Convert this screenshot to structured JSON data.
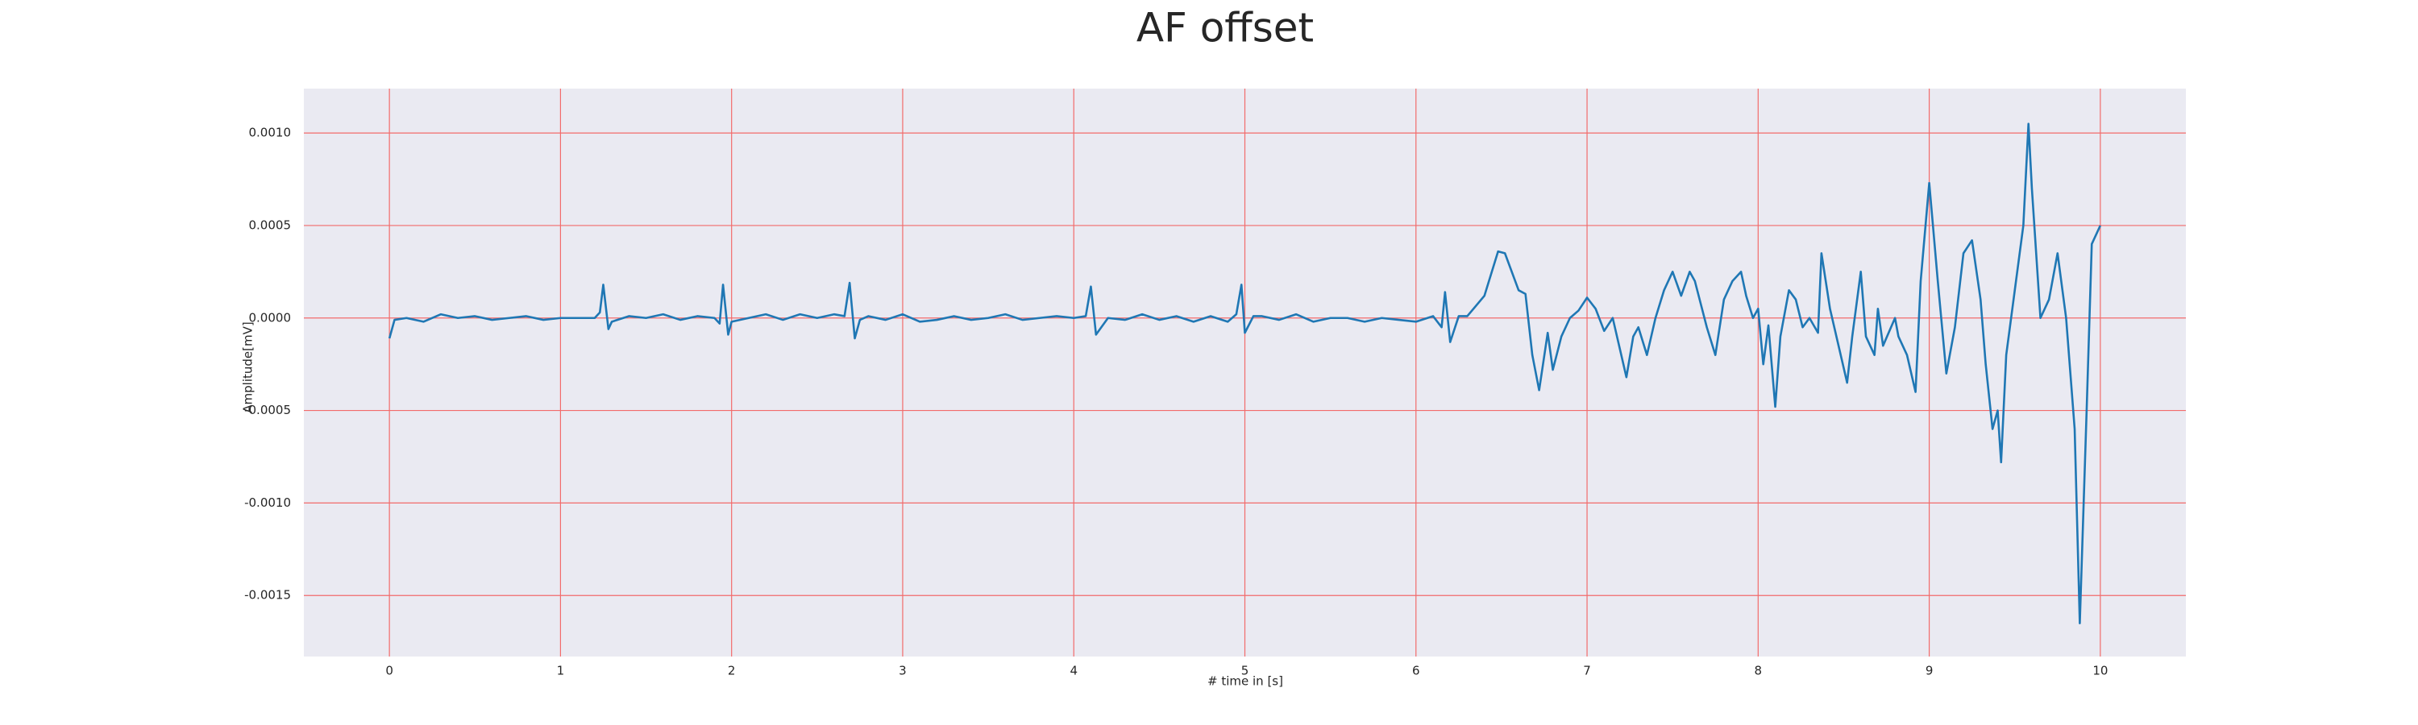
{
  "chart_data": {
    "type": "line",
    "title": "AF offset",
    "x_label": "# time in [s]",
    "y_label": "Amplitude[mV]",
    "xlim": [
      -0.5,
      10.5
    ],
    "xticks": [
      0,
      1,
      2,
      3,
      4,
      5,
      6,
      7,
      8,
      9,
      10
    ],
    "ylim": [
      -0.00183,
      0.00124
    ],
    "yticks": [
      {
        "value": 0.001,
        "label": "0.0010"
      },
      0.0005,
      {
        "value": 0,
        "label": "0.0000"
      },
      -0.0005,
      {
        "value": -0.001,
        "label": "-0.0010"
      },
      -0.0015
    ],
    "grid": true,
    "grid_color": "#f26b6b",
    "background": "#eaeaf2",
    "color": "#1f77b4",
    "x": [
      0,
      0.03,
      0.1,
      0.2,
      0.3,
      0.4,
      0.5,
      0.6,
      0.7,
      0.8,
      0.9,
      1.0,
      1.1,
      1.2,
      1.23,
      1.25,
      1.28,
      1.3,
      1.4,
      1.5,
      1.6,
      1.7,
      1.8,
      1.9,
      1.93,
      1.95,
      1.98,
      2.0,
      2.1,
      2.2,
      2.3,
      2.4,
      2.5,
      2.6,
      2.66,
      2.69,
      2.72,
      2.75,
      2.8,
      2.9,
      3.0,
      3.1,
      3.2,
      3.3,
      3.4,
      3.5,
      3.6,
      3.7,
      3.8,
      3.9,
      4.0,
      4.07,
      4.1,
      4.13,
      4.2,
      4.3,
      4.4,
      4.5,
      4.6,
      4.7,
      4.8,
      4.9,
      4.95,
      4.98,
      5.0,
      5.05,
      5.1,
      5.2,
      5.3,
      5.4,
      5.5,
      5.6,
      5.7,
      5.8,
      5.9,
      6.0,
      6.1,
      6.15,
      6.17,
      6.2,
      6.25,
      6.3,
      6.4,
      6.48,
      6.52,
      6.6,
      6.64,
      6.68,
      6.72,
      6.77,
      6.8,
      6.85,
      6.9,
      6.95,
      7.0,
      7.05,
      7.1,
      7.15,
      7.2,
      7.23,
      7.27,
      7.3,
      7.35,
      7.4,
      7.45,
      7.5,
      7.55,
      7.6,
      7.63,
      7.7,
      7.75,
      7.8,
      7.85,
      7.9,
      7.93,
      7.97,
      8.0,
      8.03,
      8.06,
      8.1,
      8.13,
      8.18,
      8.22,
      8.26,
      8.3,
      8.35,
      8.37,
      8.42,
      8.47,
      8.52,
      8.55,
      8.6,
      8.63,
      8.68,
      8.7,
      8.73,
      8.8,
      8.82,
      8.87,
      8.92,
      8.95,
      9.0,
      9.05,
      9.1,
      9.15,
      9.2,
      9.25,
      9.3,
      9.33,
      9.37,
      9.4,
      9.42,
      9.45,
      9.5,
      9.55,
      9.58,
      9.6,
      9.65,
      9.7,
      9.75,
      9.8,
      9.85,
      9.88,
      9.92,
      9.95,
      10.0
    ],
    "values": [
      -0.00011,
      -1e-05,
      0,
      -2e-05,
      2e-05,
      0,
      1e-05,
      -1e-05,
      0,
      1e-05,
      -1e-05,
      0,
      0,
      0,
      3e-05,
      0.00018,
      -6e-05,
      -2e-05,
      1e-05,
      0,
      2e-05,
      -1e-05,
      1e-05,
      0,
      -3e-05,
      0.00018,
      -9e-05,
      -2e-05,
      0,
      2e-05,
      -1e-05,
      2e-05,
      0,
      2e-05,
      1e-05,
      0.00019,
      -0.00011,
      -1e-05,
      1e-05,
      -1e-05,
      2e-05,
      -2e-05,
      -1e-05,
      1e-05,
      -1e-05,
      0,
      2e-05,
      -1e-05,
      0,
      1e-05,
      0,
      1e-05,
      0.00017,
      -9e-05,
      0,
      -1e-05,
      2e-05,
      -1e-05,
      1e-05,
      -2e-05,
      1e-05,
      -2e-05,
      2e-05,
      0.00018,
      -8e-05,
      1e-05,
      1e-05,
      -1e-05,
      2e-05,
      -2e-05,
      0,
      0,
      -2e-05,
      0,
      -1e-05,
      -2e-05,
      1e-05,
      -5e-05,
      0.00014,
      -0.00013,
      1e-05,
      1e-05,
      0.00012,
      0.00036,
      0.00035,
      0.00015,
      0.00013,
      -0.0002,
      -0.00039,
      -8e-05,
      -0.00028,
      -0.0001,
      0,
      4e-05,
      0.00011,
      5e-05,
      -7e-05,
      0,
      -0.0002,
      -0.00032,
      -0.0001,
      -5e-05,
      -0.0002,
      0,
      0.00015,
      0.00025,
      0.00012,
      0.00025,
      0.0002,
      -5e-05,
      -0.0002,
      0.0001,
      0.0002,
      0.00025,
      0.00012,
      0,
      5e-05,
      -0.00025,
      -4e-05,
      -0.00048,
      -0.0001,
      0.00015,
      0.0001,
      -5e-05,
      0,
      -8e-05,
      0.00035,
      5e-05,
      -0.00015,
      -0.00035,
      -0.0001,
      0.00025,
      -0.0001,
      -0.0002,
      5e-05,
      -0.00015,
      0,
      -0.0001,
      -0.0002,
      -0.0004,
      0.0002,
      0.00073,
      0.0002,
      -0.0003,
      -5e-05,
      0.00035,
      0.00042,
      0.0001,
      -0.00025,
      -0.0006,
      -0.0005,
      -0.00078,
      -0.0002,
      0.00015,
      0.0005,
      0.00105,
      0.0007,
      0,
      0.0001,
      0.00035,
      0,
      -0.0006,
      -0.00165,
      -0.0005,
      0.0004,
      0.0005
    ]
  }
}
